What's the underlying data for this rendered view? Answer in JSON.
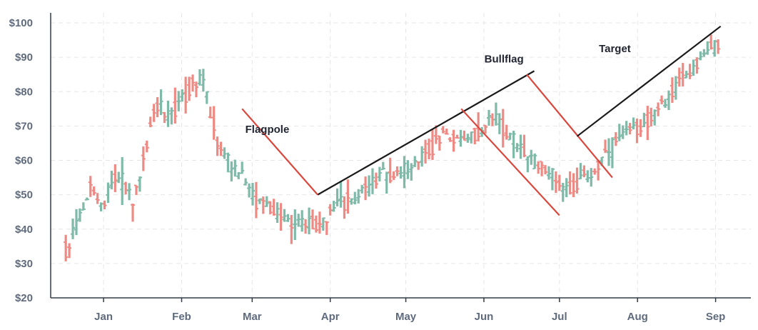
{
  "chart_data": {
    "type": "ohlc",
    "ylim": [
      20,
      100
    ],
    "y_ticks": [
      20,
      30,
      40,
      50,
      60,
      70,
      80,
      90,
      100
    ],
    "y_tick_labels": [
      "$20",
      "$30",
      "$40",
      "$50",
      "$60",
      "$70",
      "$80",
      "$90",
      "$100"
    ],
    "x_ticks": [
      {
        "day": 15,
        "label": "Jan"
      },
      {
        "day": 46,
        "label": "Feb"
      },
      {
        "day": 74,
        "label": "Mar"
      },
      {
        "day": 105,
        "label": "Apr"
      },
      {
        "day": 135,
        "label": "May"
      },
      {
        "day": 166,
        "label": "Jun"
      },
      {
        "day": 196,
        "label": "Jul"
      },
      {
        "day": 227,
        "label": "Aug"
      },
      {
        "day": 258,
        "label": "Sep"
      }
    ],
    "x_range_days": [
      -6,
      272
    ],
    "grid": true,
    "colors": {
      "up": "#7fb9a8",
      "down": "#ee8a84",
      "trend": "#1a1a1a",
      "channel": "#d9473d"
    },
    "price_path": [
      [
        0,
        34
      ],
      [
        5,
        43
      ],
      [
        10,
        52
      ],
      [
        15,
        46
      ],
      [
        20,
        56
      ],
      [
        27,
        49
      ],
      [
        32,
        64
      ],
      [
        36,
        77
      ],
      [
        41,
        72
      ],
      [
        46,
        78
      ],
      [
        50,
        82
      ],
      [
        54,
        84
      ],
      [
        57,
        76
      ],
      [
        60,
        66
      ],
      [
        66,
        58
      ],
      [
        70,
        55
      ],
      [
        75,
        49
      ],
      [
        80,
        47
      ],
      [
        85,
        44
      ],
      [
        90,
        43
      ],
      [
        95,
        42
      ],
      [
        100,
        41
      ],
      [
        105,
        45
      ],
      [
        110,
        47
      ],
      [
        115,
        49
      ],
      [
        120,
        52
      ],
      [
        125,
        55
      ],
      [
        130,
        56
      ],
      [
        135,
        57
      ],
      [
        140,
        60
      ],
      [
        145,
        63
      ],
      [
        150,
        68
      ],
      [
        155,
        66
      ],
      [
        160,
        67
      ],
      [
        165,
        68
      ],
      [
        170,
        73
      ],
      [
        175,
        68
      ],
      [
        180,
        64
      ],
      [
        185,
        60
      ],
      [
        190,
        58
      ],
      [
        195,
        54
      ],
      [
        200,
        52
      ],
      [
        205,
        54
      ],
      [
        210,
        57
      ],
      [
        215,
        62
      ],
      [
        220,
        66
      ],
      [
        225,
        69
      ],
      [
        230,
        71
      ],
      [
        235,
        74
      ],
      [
        240,
        79
      ],
      [
        245,
        84
      ],
      [
        250,
        88
      ],
      [
        255,
        92
      ],
      [
        260,
        94
      ]
    ],
    "annotations": [
      {
        "text": "Flagpole",
        "day": 80,
        "price": 69
      },
      {
        "text": "Bullflag",
        "day": 174,
        "price": 89.5
      },
      {
        "text": "Target",
        "day": 218,
        "price": 92.5
      }
    ],
    "trend_lines": [
      {
        "style": "trend",
        "points": [
          [
            100,
            50
          ],
          [
            186,
            86
          ]
        ]
      },
      {
        "style": "channel",
        "points": [
          [
            70,
            75
          ],
          [
            100,
            50
          ]
        ]
      },
      {
        "style": "channel",
        "points": [
          [
            157,
            75
          ],
          [
            196,
            44
          ]
        ]
      },
      {
        "style": "channel",
        "points": [
          [
            183,
            85
          ],
          [
            217,
            55
          ]
        ]
      },
      {
        "style": "trend",
        "points": [
          [
            203,
            67
          ],
          [
            260,
            99
          ]
        ]
      }
    ]
  }
}
